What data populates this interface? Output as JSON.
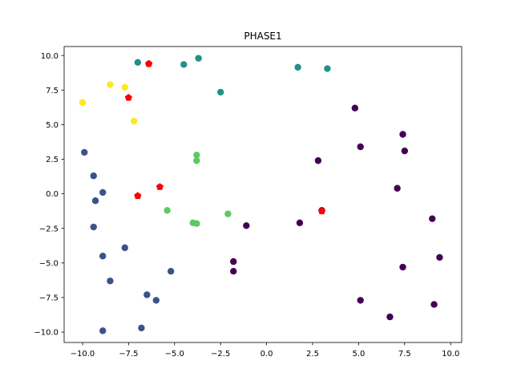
{
  "chart_data": {
    "type": "scatter",
    "title": "PHASE1",
    "xlabel": "",
    "ylabel": "",
    "xlim": [
      -11.0,
      10.6
    ],
    "ylim": [
      -10.75,
      10.65
    ],
    "xticks": [
      -10.0,
      -7.5,
      -5.0,
      -2.5,
      0.0,
      2.5,
      5.0,
      7.5,
      10.0
    ],
    "yticks": [
      -10.0,
      -7.5,
      -5.0,
      -2.5,
      0.0,
      2.5,
      5.0,
      7.5,
      10.0
    ],
    "xtick_labels": [
      "−10.0",
      "−7.5",
      "−5.0",
      "−2.5",
      "0.0",
      "2.5",
      "5.0",
      "7.5",
      "10.0"
    ],
    "ytick_labels": [
      "−10.0",
      "−7.5",
      "−5.0",
      "−2.5",
      "0.0",
      "2.5",
      "5.0",
      "7.5",
      "10.0"
    ],
    "grid": false,
    "series": [
      {
        "color": "#440154",
        "points": [
          [
            4.8,
            6.2
          ],
          [
            7.4,
            4.3
          ],
          [
            5.1,
            3.4
          ],
          [
            7.5,
            3.1
          ],
          [
            2.8,
            2.4
          ],
          [
            7.1,
            0.4
          ],
          [
            3.0,
            -1.2
          ],
          [
            9.0,
            -1.8
          ],
          [
            1.8,
            -2.1
          ],
          [
            -1.1,
            -2.3
          ],
          [
            9.4,
            -4.6
          ],
          [
            -1.8,
            -4.9
          ],
          [
            7.4,
            -5.3
          ],
          [
            -1.8,
            -5.6
          ],
          [
            5.1,
            -7.7
          ],
          [
            9.1,
            -8.0
          ],
          [
            6.7,
            -8.9
          ]
        ]
      },
      {
        "color": "#3b528b",
        "points": [
          [
            -9.9,
            3.0
          ],
          [
            -9.4,
            1.3
          ],
          [
            -8.9,
            0.1
          ],
          [
            -9.3,
            -0.5
          ],
          [
            -9.4,
            -2.4
          ],
          [
            -7.7,
            -3.9
          ],
          [
            -8.9,
            -4.5
          ],
          [
            -5.2,
            -5.6
          ],
          [
            -8.5,
            -6.3
          ],
          [
            -6.5,
            -7.3
          ],
          [
            -6.0,
            -7.7
          ],
          [
            -6.8,
            -9.7
          ],
          [
            -8.9,
            -9.9
          ]
        ]
      },
      {
        "color": "#21918c",
        "points": [
          [
            -7.0,
            9.5
          ],
          [
            -6.4,
            9.4
          ],
          [
            -3.7,
            9.8
          ],
          [
            -4.5,
            9.35
          ],
          [
            1.7,
            9.15
          ],
          [
            3.3,
            9.05
          ],
          [
            -2.5,
            7.35
          ]
        ]
      },
      {
        "color": "#5ec962",
        "points": [
          [
            -3.8,
            2.8
          ],
          [
            -3.8,
            2.4
          ],
          [
            -5.4,
            -1.2
          ],
          [
            -2.1,
            -1.45
          ],
          [
            -4.0,
            -2.1
          ],
          [
            -3.8,
            -2.15
          ]
        ]
      },
      {
        "color": "#fde725",
        "points": [
          [
            -8.5,
            7.9
          ],
          [
            -7.7,
            7.7
          ],
          [
            -10.0,
            6.6
          ],
          [
            -7.2,
            5.25
          ]
        ]
      }
    ],
    "markers": {
      "color": "#ff0000",
      "points": [
        [
          -6.4,
          9.4
        ],
        [
          -7.5,
          6.95
        ],
        [
          -5.8,
          0.5
        ],
        [
          -7.0,
          -0.15
        ],
        [
          3.0,
          -1.25
        ]
      ]
    }
  }
}
